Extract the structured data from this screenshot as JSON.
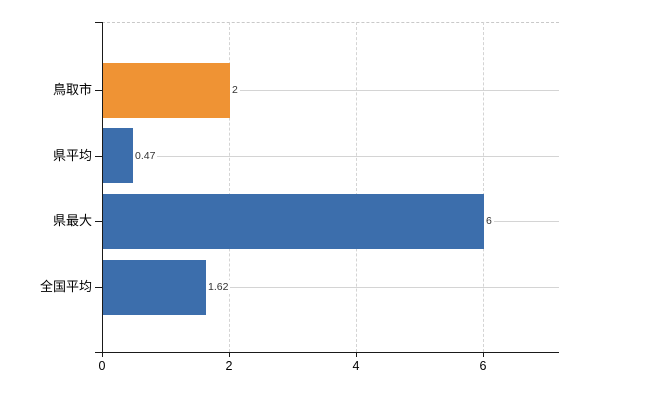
{
  "chart_data": {
    "type": "bar",
    "orientation": "horizontal",
    "title": "",
    "xlabel": "",
    "ylabel": "",
    "categories": [
      "鳥取市",
      "県平均",
      "県最大",
      "全国平均"
    ],
    "values": [
      2,
      0.47,
      6,
      1.62
    ],
    "value_labels": [
      "2",
      "0.47",
      "6",
      "1.62"
    ],
    "bar_colors": [
      "#EF9334",
      "#3C6EAC",
      "#3C6EAC",
      "#3C6EAC"
    ],
    "x_ticks": [
      0,
      2,
      4,
      6
    ],
    "x_tick_labels": [
      "0",
      "2",
      "4",
      "6"
    ],
    "xlim": [
      0,
      7.2
    ],
    "grid": {
      "vertical_gridlines": "dashed",
      "horizontal_gridlines": "solid",
      "top_border": "dashed"
    },
    "legend": "none",
    "colors": {
      "accent_orange": "#EF9334",
      "accent_blue": "#3C6EAC",
      "gridline": "#d4d4d4",
      "axis": "#1a1a1a",
      "category_text": "#000000",
      "value_text": "#333333",
      "background": "#ffffff"
    }
  }
}
